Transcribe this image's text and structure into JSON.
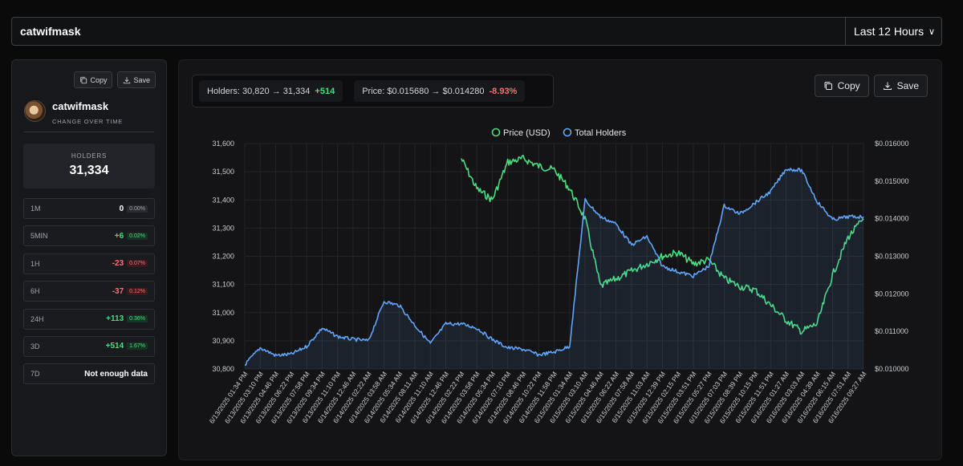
{
  "search": {
    "value": "catwifmask"
  },
  "range": {
    "selected": "Last 12 Hours"
  },
  "sidebar": {
    "copy_label": "Copy",
    "save_label": "Save",
    "token_name": "catwifmask",
    "subtitle": "CHANGE OVER TIME",
    "holders_label": "HOLDERS",
    "holders_value": "31,334",
    "rows": [
      {
        "label": "1M",
        "value": "0",
        "pct": "0.00%",
        "tone": "neu"
      },
      {
        "label": "5MIN",
        "value": "+6",
        "pct": "0.02%",
        "tone": "pos"
      },
      {
        "label": "1H",
        "value": "-23",
        "pct": "0.07%",
        "tone": "neg"
      },
      {
        "label": "6H",
        "value": "-37",
        "pct": "0.12%",
        "tone": "neg"
      },
      {
        "label": "24H",
        "value": "+113",
        "pct": "0.36%",
        "tone": "pos"
      },
      {
        "label": "3D",
        "value": "+514",
        "pct": "1.67%",
        "tone": "pos"
      },
      {
        "label": "7D",
        "value": "Not enough data",
        "pct": "",
        "tone": "na"
      }
    ]
  },
  "main": {
    "holders_stat": "Holders: 30,820 → 31,334",
    "holders_change": "+514",
    "price_stat": "Price: $0.015680 → $0.014280",
    "price_change": "-8.93%",
    "copy_label": "Copy",
    "save_label": "Save"
  },
  "colors": {
    "price": "#4ade80",
    "holders": "#60a5fa",
    "positive": "#4ade80",
    "negative": "#f87171"
  },
  "chart_data": {
    "type": "line",
    "legend": "top-center",
    "grid": true,
    "x": [
      "6/13/2025 01:34 PM",
      "6/13/2025 03:10 PM",
      "6/13/2025 04:46 PM",
      "6/13/2025 06:22 PM",
      "6/13/2025 07:58 PM",
      "6/13/2025 09:34 PM",
      "6/13/2025 11:10 PM",
      "6/14/2025 12:46 AM",
      "6/14/2025 02:22 AM",
      "6/14/2025 03:58 AM",
      "6/14/2025 05:34 AM",
      "6/14/2025 08:11 AM",
      "6/14/2025 11:10 AM",
      "6/14/2025 12:46 PM",
      "6/14/2025 02:22 PM",
      "6/14/2025 03:58 PM",
      "6/14/2025 05:34 PM",
      "6/14/2025 07:10 PM",
      "6/14/2025 08:46 PM",
      "6/14/2025 10:22 PM",
      "6/14/2025 11:58 PM",
      "6/15/2025 01:34 AM",
      "6/15/2025 03:10 AM",
      "6/15/2025 04:46 AM",
      "6/15/2025 06:22 AM",
      "6/15/2025 07:58 AM",
      "6/15/2025 11:03 AM",
      "6/15/2025 12:39 PM",
      "6/15/2025 02:15 PM",
      "6/15/2025 03:51 PM",
      "6/15/2025 05:27 PM",
      "6/15/2025 07:03 PM",
      "6/15/2025 08:39 PM",
      "6/15/2025 10:15 PM",
      "6/15/2025 11:51 PM",
      "6/16/2025 01:27 AM",
      "6/16/2025 03:03 AM",
      "6/16/2025 04:39 AM",
      "6/16/2025 06:15 AM",
      "6/16/2025 07:51 AM",
      "6/16/2025 09:27 AM"
    ],
    "left_axis": {
      "ylim": [
        30800,
        31600
      ],
      "ticks": [
        "30,800",
        "30,900",
        "31,000",
        "31,100",
        "31,200",
        "31,300",
        "31,400",
        "31,500",
        "31,600"
      ]
    },
    "right_axis": {
      "ylim": [
        0.01,
        0.016
      ],
      "ticks": [
        "$0.010000",
        "$0.011000",
        "$0.012000",
        "$0.013000",
        "$0.014000",
        "$0.015000",
        "$0.016000"
      ]
    },
    "series": [
      {
        "name": "Price (USD)",
        "axis": "right",
        "color": "#4ade80",
        "values": [
          null,
          null,
          null,
          null,
          null,
          null,
          null,
          null,
          null,
          null,
          null,
          null,
          null,
          null,
          0.0156,
          0.0148,
          0.0145,
          0.0155,
          0.0156,
          0.0154,
          0.0153,
          0.0148,
          0.014,
          0.0122,
          0.0124,
          0.0126,
          0.0128,
          0.013,
          0.0131,
          0.0128,
          0.0129,
          0.0124,
          0.0122,
          0.0121,
          0.0117,
          0.0113,
          0.011,
          0.0112,
          0.0125,
          0.0135,
          0.014
        ]
      },
      {
        "name": "Total Holders",
        "axis": "left",
        "color": "#60a5fa",
        "values": [
          30815,
          30875,
          30848,
          30852,
          30880,
          30945,
          30915,
          30905,
          30900,
          31040,
          31025,
          30955,
          30890,
          30960,
          30960,
          30945,
          30905,
          30875,
          30870,
          30850,
          30860,
          30880,
          31400,
          31340,
          31315,
          31240,
          31270,
          31165,
          31145,
          31130,
          31165,
          31380,
          31350,
          31390,
          31430,
          31510,
          31505,
          31395,
          31330,
          31340,
          31340
        ]
      }
    ]
  }
}
